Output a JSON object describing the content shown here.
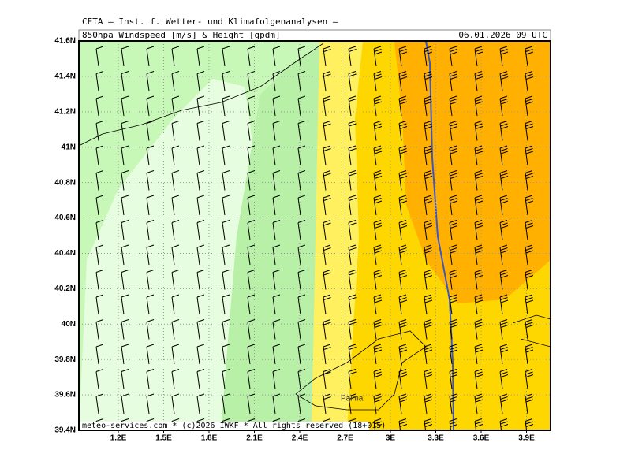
{
  "header": {
    "line1": "CETA — Inst. f. Wetter- und Klimafolgenanalysen —",
    "title": "850hpa Windspeed [m/s] & Height [gpdm]",
    "time": "06.01.2026 09 UTC"
  },
  "axes": {
    "x_labels": [
      "1.2E",
      "1.5E",
      "1.8E",
      "2.1E",
      "2.4E",
      "2.7E",
      "3E",
      "3.3E",
      "3.6E",
      "3.9E"
    ],
    "y_labels": [
      "41.6N",
      "41.4N",
      "41.2N",
      "41N",
      "40.8N",
      "40.6N",
      "40.4N",
      "40.2N",
      "40N",
      "39.8N",
      "39.6N",
      "39.4N"
    ]
  },
  "places": [
    "Palma"
  ],
  "footer": "meteo-services.com * (c)2026 IWKF * All rights reserved (18+015)"
}
